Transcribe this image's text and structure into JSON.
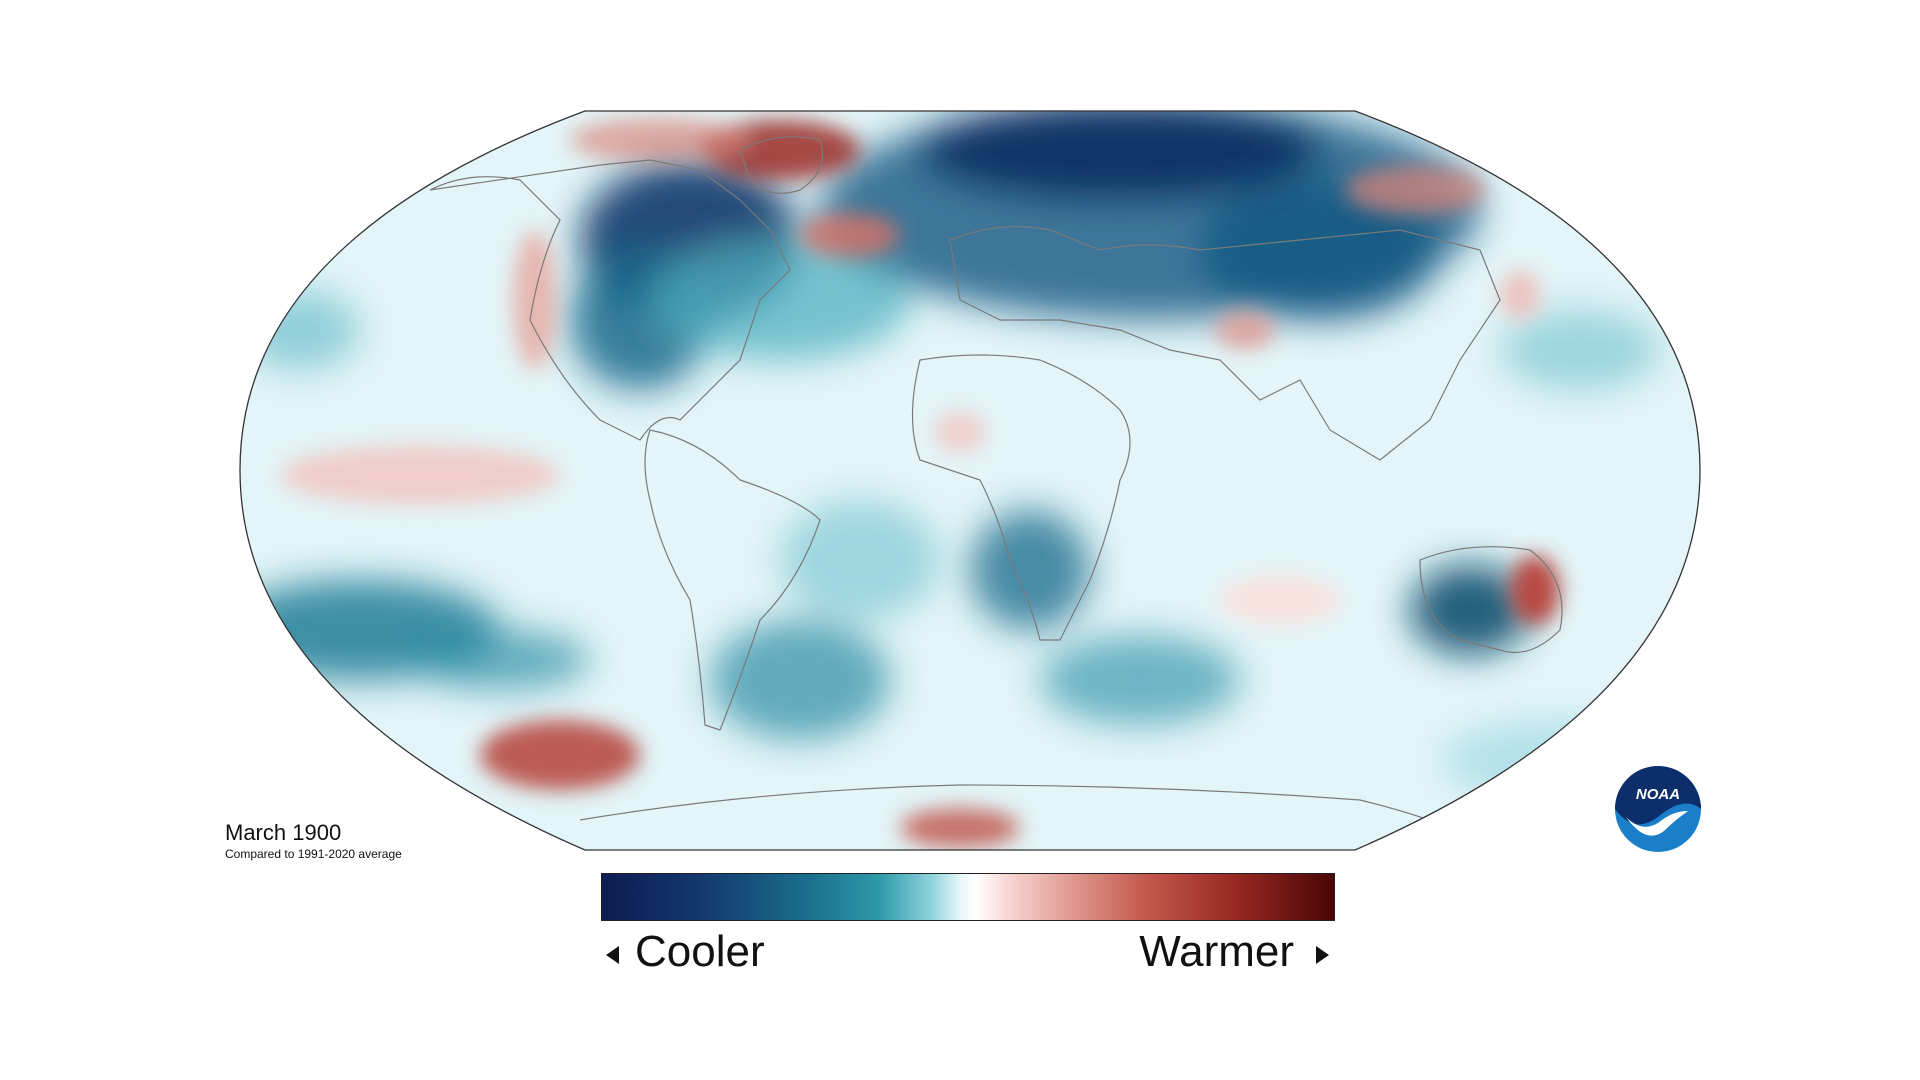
{
  "caption": {
    "title": "March 1900",
    "subtitle": "Compared to 1991-2020 average"
  },
  "legend": {
    "cooler_label": "Cooler",
    "warmer_label": "Warmer",
    "cool_colors": [
      "#0d1b52",
      "#1a6e8c",
      "#8fd3dd",
      "#ffffff"
    ],
    "warm_colors": [
      "#ffffff",
      "#e09a92",
      "#c45a4e",
      "#4a0606"
    ]
  },
  "map": {
    "projection": "Robinson",
    "ocean_base_color": "#dff4f7",
    "coastline_color": "#7a7a7a"
  },
  "logo": {
    "text": "NOAA",
    "icon": "noaa-logo-icon"
  }
}
